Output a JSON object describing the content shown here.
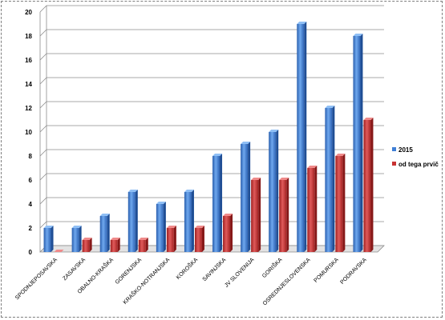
{
  "chart_data": {
    "type": "bar",
    "title": "",
    "xlabel": "",
    "ylabel": "",
    "ylim": [
      0,
      20
    ],
    "yticks": [
      0,
      2,
      4,
      6,
      8,
      10,
      12,
      14,
      16,
      18,
      20
    ],
    "grid": true,
    "legend_position": "right",
    "categories": [
      "SPODNJEPOSAVSKA",
      "ZASAVSKA",
      "OBALNO-KRAŠKA",
      "GORENJSKA",
      "KRAŠKO-NOTRANJSKA",
      "KOROŠKA",
      "SAVINJSKA",
      "JV SLOVENIJA",
      "GORIŠKA",
      "OSREDNJESLOVENSKA",
      "POMURSKA",
      "PODRAVSKA"
    ],
    "series": [
      {
        "name": "2015",
        "color": "#3f7fd6",
        "values": [
          2,
          2,
          3,
          5,
          4,
          5,
          8,
          9,
          10,
          19,
          12,
          18
        ]
      },
      {
        "name": "od tega prvič",
        "color": "#c83232",
        "values": [
          0,
          1,
          1,
          1,
          2,
          2,
          3,
          6,
          6,
          7,
          8,
          11
        ]
      }
    ]
  }
}
